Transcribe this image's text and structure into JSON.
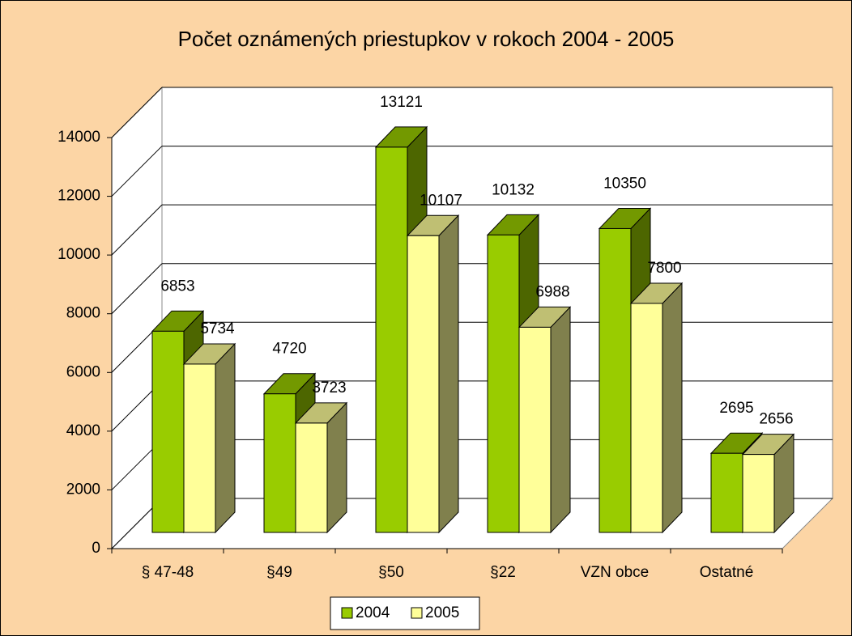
{
  "chart_data": {
    "type": "bar3d",
    "title": "Počet oznámených priestupkov v rokoch 2004 - 2005",
    "categories": [
      "§ 47-48",
      "§49",
      "§50",
      "§22",
      "VZN obce",
      "Ostatné"
    ],
    "series": [
      {
        "name": "2004",
        "color": "#99CC00",
        "values": [
          6853,
          4720,
          13121,
          10132,
          10350,
          2695
        ]
      },
      {
        "name": "2005",
        "color": "#FFFF99",
        "values": [
          5734,
          3723,
          10107,
          6988,
          7800,
          2656
        ]
      }
    ],
    "ylim": [
      0,
      14000
    ],
    "yticks": [
      0,
      2000,
      4000,
      6000,
      8000,
      10000,
      12000,
      14000
    ],
    "grid": true,
    "legend": "bottom"
  }
}
